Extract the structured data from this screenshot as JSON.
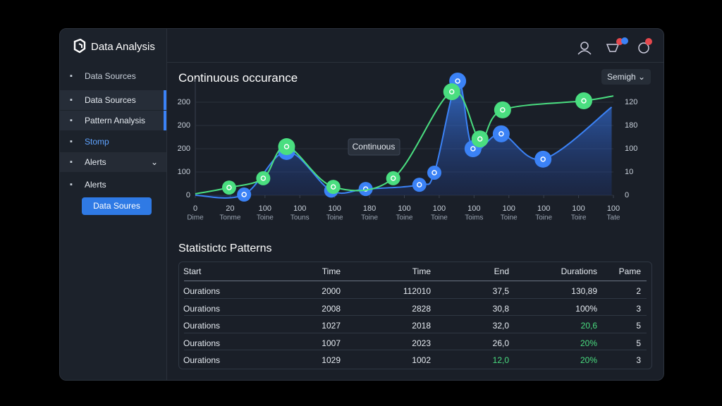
{
  "sidebar": {
    "brand": "Data Analysis",
    "items": [
      {
        "label": "Data Sources",
        "state": "section"
      },
      {
        "label": "Data Sources",
        "state": "active"
      },
      {
        "label": "Pattern Analysis",
        "state": "active"
      },
      {
        "label": "Stomp",
        "state": "link"
      },
      {
        "label": "Alerts",
        "state": "expanded"
      },
      {
        "label": "Alerts",
        "state": "normal"
      }
    ],
    "button": "Data Soures"
  },
  "header": {
    "dropdown": "Semigh"
  },
  "chart_data": {
    "type": "line",
    "title": "Continuous occurance",
    "annotation": "Continuous",
    "xlim": [
      0,
      12
    ],
    "xticks": [
      {
        "value": 0,
        "label": "0",
        "unit": "Dime"
      },
      {
        "value": 1,
        "label": "20",
        "unit": "Tonme"
      },
      {
        "value": 2,
        "label": "100",
        "unit": "Toine"
      },
      {
        "value": 3,
        "label": "100",
        "unit": "Touns"
      },
      {
        "value": 4,
        "label": "100",
        "unit": "Toine"
      },
      {
        "value": 5,
        "label": "180",
        "unit": "Toine"
      },
      {
        "value": 6,
        "label": "100",
        "unit": "Toine"
      },
      {
        "value": 7,
        "label": "100",
        "unit": "Toine"
      },
      {
        "value": 8,
        "label": "100",
        "unit": "Toims"
      },
      {
        "value": 9,
        "label": "100",
        "unit": "Toine"
      },
      {
        "value": 10,
        "label": "100",
        "unit": "Toine"
      },
      {
        "value": 11,
        "label": "100",
        "unit": "Toire"
      },
      {
        "value": 12,
        "label": "100",
        "unit": "Tate"
      }
    ],
    "ylim": [
      0,
      5
    ],
    "yticks": [
      {
        "value": 0,
        "label": "0"
      },
      {
        "value": 1,
        "label": "100"
      },
      {
        "value": 2,
        "label": "200"
      },
      {
        "value": 3,
        "label": "200"
      },
      {
        "value": 4,
        "label": "200"
      }
    ],
    "y2lim": [
      0,
      5
    ],
    "y2ticks": [
      {
        "value": 0,
        "label": "0"
      },
      {
        "value": 1,
        "label": "10"
      },
      {
        "value": 2,
        "label": "100"
      },
      {
        "value": 3,
        "label": "180"
      },
      {
        "value": 4,
        "label": "120"
      }
    ],
    "grid": true,
    "series": [
      {
        "color": "#3b82f6",
        "area": true,
        "x": [
          0,
          1.4,
          2.62,
          3.9,
          4.89,
          6.43,
          6.86,
          7.53,
          7.97,
          8.78,
          9.98,
          11.95
        ],
        "values": [
          0,
          0.03,
          1.88,
          0.2,
          0.27,
          0.45,
          0.97,
          4.91,
          2.0,
          2.64,
          1.55,
          3.79
        ]
      },
      {
        "color": "#4ade80",
        "area": false,
        "x": [
          0,
          0.97,
          1.95,
          2.62,
          3.96,
          5.68,
          7.36,
          8.17,
          8.82,
          11.15,
          12
        ],
        "values": [
          0.06,
          0.33,
          0.73,
          2.09,
          0.36,
          0.73,
          4.45,
          2.42,
          3.67,
          4.06,
          4.27
        ]
      }
    ]
  },
  "table": {
    "title": "Statistictc Patterns",
    "columns": [
      "Start",
      "Time",
      "Time",
      "End",
      "Durations",
      "Pame"
    ],
    "rows": [
      [
        {
          "text": "Ourations"
        },
        {
          "text": "2000"
        },
        {
          "text": "112010"
        },
        {
          "text": "37,5"
        },
        {
          "text": "130,89"
        },
        {
          "text": "2"
        }
      ],
      [
        {
          "text": "Ourations"
        },
        {
          "text": "2008"
        },
        {
          "text": "2828"
        },
        {
          "text": "30,8"
        },
        {
          "text": "100%"
        },
        {
          "text": "3"
        }
      ],
      [
        {
          "text": "Ourations"
        },
        {
          "text": "1027"
        },
        {
          "text": "2018"
        },
        {
          "text": "32,0"
        },
        {
          "text": "20,6",
          "color": "#4ade80"
        },
        {
          "text": "5"
        }
      ],
      [
        {
          "text": "Ourations"
        },
        {
          "text": "1007"
        },
        {
          "text": "2023"
        },
        {
          "text": "26,0"
        },
        {
          "text": "20%",
          "color": "#4ade80"
        },
        {
          "text": "5"
        }
      ],
      [
        {
          "text": "Ourations"
        },
        {
          "text": "1029"
        },
        {
          "text": "1002"
        },
        {
          "text": "12,0",
          "color": "#4ade80"
        },
        {
          "text": "20%",
          "color": "#4ade80"
        },
        {
          "text": "3"
        }
      ]
    ]
  }
}
